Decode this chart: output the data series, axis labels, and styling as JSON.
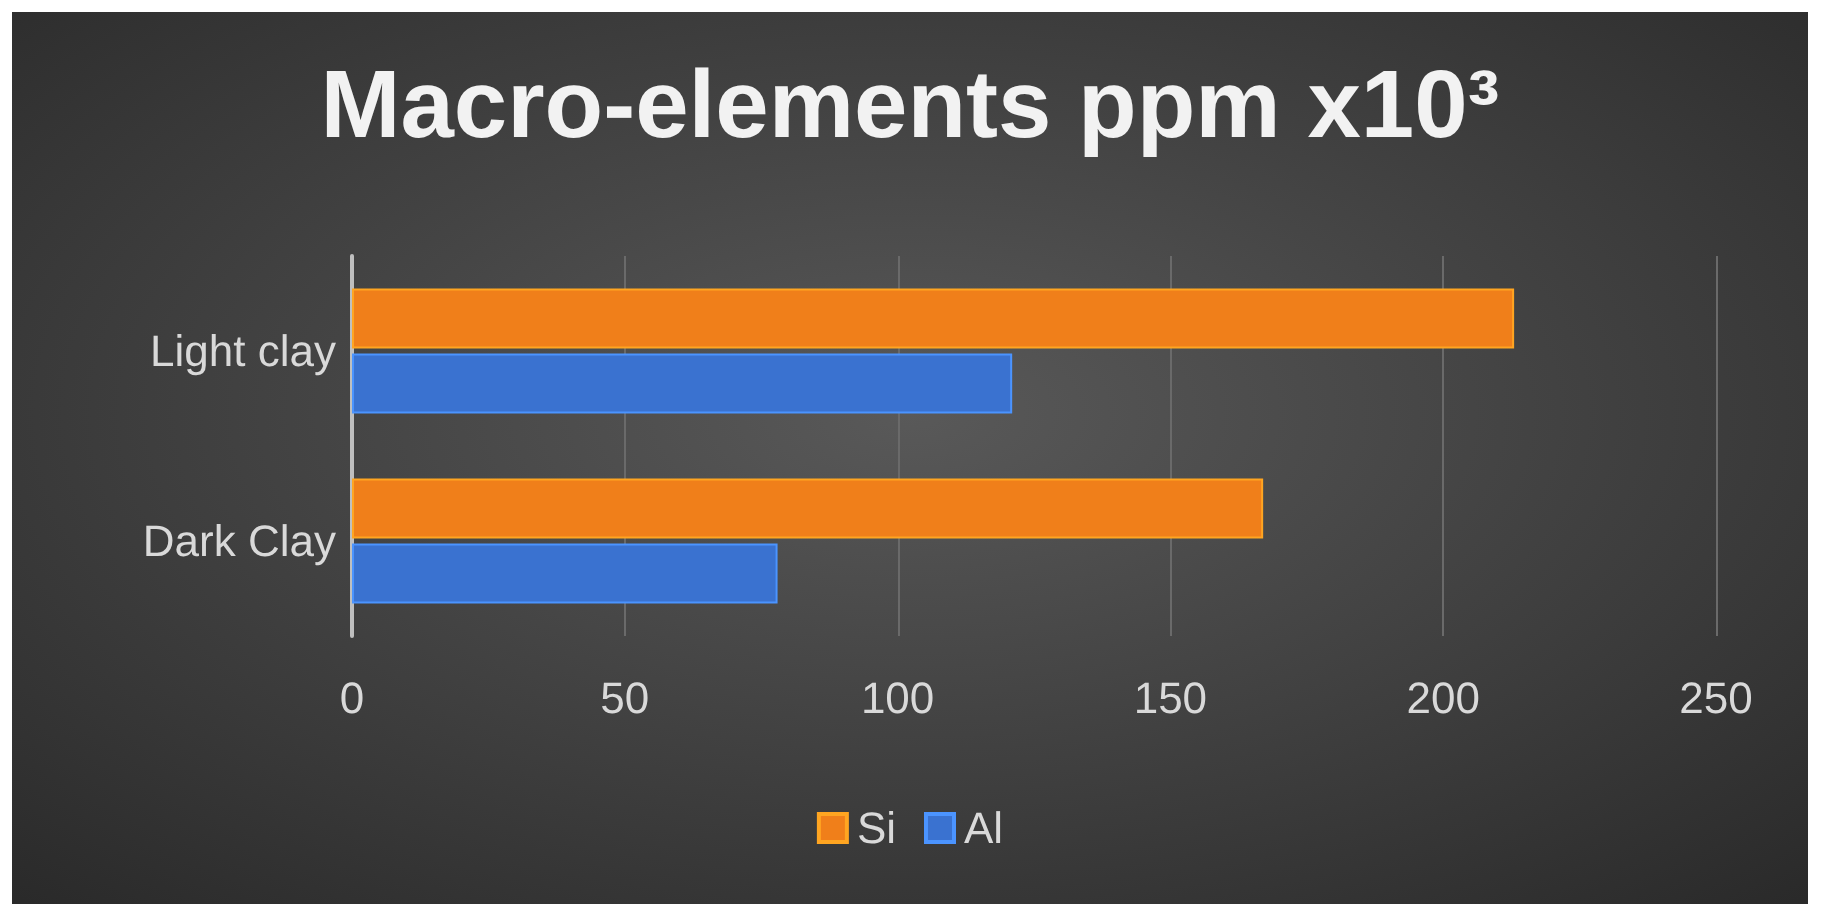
{
  "chart_data": {
    "type": "bar",
    "orientation": "horizontal",
    "title": "Macro-elements ppm x10³",
    "categories": [
      "Light clay",
      "Dark Clay"
    ],
    "series": [
      {
        "name": "Si",
        "color": "#f07f1a",
        "values": [
          213,
          167
        ]
      },
      {
        "name": "Al",
        "color": "#3a72d0",
        "values": [
          121,
          78
        ]
      }
    ],
    "xlim": [
      0,
      250
    ],
    "xticks": [
      0,
      50,
      100,
      150,
      200,
      250
    ],
    "grid": "x",
    "legend": "bottom"
  }
}
